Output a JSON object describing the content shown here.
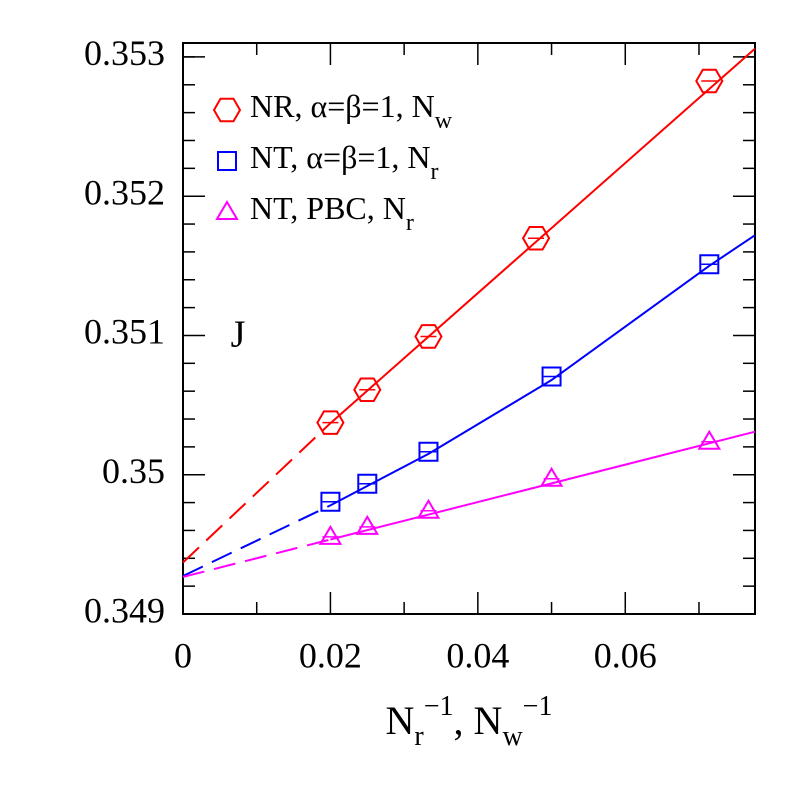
{
  "chart_data": {
    "type": "scatter",
    "x_label": [
      {
        "text": "N",
        "pos": "base"
      },
      {
        "text": "r",
        "pos": "sub"
      },
      {
        "text": "−1",
        "pos": "sup"
      },
      {
        "text": ",  N",
        "pos": "base"
      },
      {
        "text": "w",
        "pos": "sub"
      },
      {
        "text": "−1",
        "pos": "sup"
      }
    ],
    "annotation": "J",
    "xlim": [
      0,
      0.0776
    ],
    "ylim": [
      0.349,
      0.3531
    ],
    "xticks": [
      0,
      0.02,
      0.04,
      0.06
    ],
    "xminor": [
      0.01,
      0.03,
      0.05,
      0.07
    ],
    "yticks": [
      0.349,
      0.35,
      0.351,
      0.352,
      0.353
    ],
    "yminor": [
      0.3492,
      0.3494,
      0.3496,
      0.3498,
      0.3502,
      0.3504,
      0.3506,
      0.3508,
      0.3512,
      0.3514,
      0.3516,
      0.3518,
      0.3522,
      0.3524,
      0.3526,
      0.3528,
      0.353
    ],
    "series": [
      {
        "name": "NR,  α=β=1,  N",
        "name_subscript": "w",
        "color": "#ff0000",
        "marker": "hexagon",
        "x": [
          0.02,
          0.025,
          0.0333,
          0.0479,
          0.0714
        ],
        "values": [
          0.350374,
          0.35061,
          0.350993,
          0.351698,
          0.352827
        ]
      },
      {
        "name": "NT,  α=β=1,  N",
        "name_subscript": "r",
        "color": "#0000ff",
        "marker": "square",
        "x": [
          0.02,
          0.025,
          0.0333,
          0.05,
          0.0714
        ],
        "values": [
          0.349806,
          0.349935,
          0.350165,
          0.350705,
          0.351511
        ]
      },
      {
        "name": "NT,  PBC,  N",
        "name_subscript": "r",
        "color": "#ff00ff",
        "marker": "triangle",
        "x": [
          0.02,
          0.025,
          0.0333,
          0.05,
          0.0714
        ],
        "values": [
          0.349554,
          0.349626,
          0.349741,
          0.349971,
          0.350237
        ]
      }
    ],
    "fits": [
      {
        "color": "#ff0000",
        "style": "dashed",
        "x": [
          0,
          0.02
        ],
        "values": [
          0.34937,
          0.35037
        ]
      },
      {
        "color": "#ff0000",
        "style": "solid",
        "x": [
          0.02,
          0.0776
        ],
        "values": [
          0.35037,
          0.35306
        ]
      },
      {
        "color": "#0000ff",
        "style": "dashed",
        "x": [
          0,
          0.02
        ],
        "values": [
          0.349273,
          0.34978
        ]
      },
      {
        "color": "#0000ff",
        "style": "solid",
        "x": [
          0.02,
          0.0333,
          0.05,
          0.0714,
          0.0776
        ],
        "values": [
          0.34978,
          0.35015,
          0.35068,
          0.3515,
          0.35172
        ]
      },
      {
        "color": "#ff00ff",
        "style": "dashed",
        "x": [
          0,
          0.02
        ],
        "values": [
          0.349266,
          0.349535
        ]
      },
      {
        "color": "#ff00ff",
        "style": "solid",
        "x": [
          0.02,
          0.0776
        ],
        "values": [
          0.349535,
          0.350309
        ]
      }
    ]
  }
}
